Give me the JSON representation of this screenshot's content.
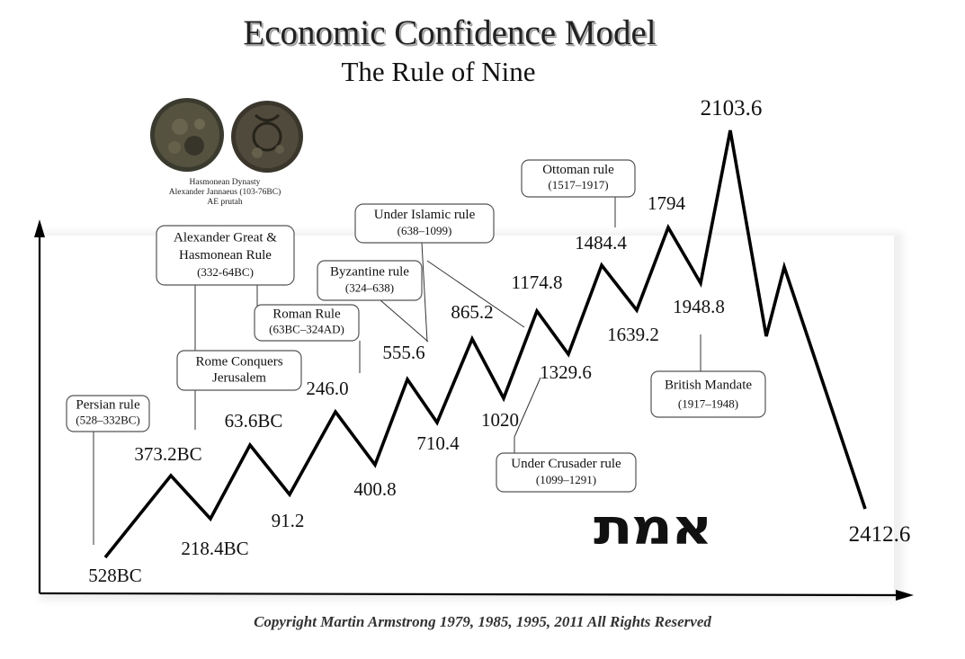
{
  "header": {
    "title": "Economic Confidence Model",
    "subtitle": "The Rule of Nine"
  },
  "coin": {
    "caption_lines": [
      "Hasmonean Dynasty",
      "Alexander Jannaeus (103-76BC)",
      "AE prutah"
    ]
  },
  "hebrew_text": "אמת",
  "copyright": "Copyright Martin Armstrong 1979, 1985, 1995, 2011 All Rights Reserved",
  "colors": {
    "line": "#000000",
    "box_border": "#555555",
    "background": "#ffffff"
  },
  "chart_data": {
    "type": "line",
    "title": "Economic Confidence Model",
    "subtitle": "The Rule of Nine",
    "xlabel": "",
    "ylabel": "",
    "grid": false,
    "points": [
      {
        "x": "528BC",
        "label": "528BC",
        "kind": "trough"
      },
      {
        "x": "373.2BC",
        "label": "373.2BC",
        "kind": "peak"
      },
      {
        "x": "218.4BC",
        "label": "218.4BC",
        "kind": "trough"
      },
      {
        "x": "63.6BC",
        "label": "63.6BC",
        "kind": "peak"
      },
      {
        "x": "91.2",
        "label": "91.2",
        "kind": "trough"
      },
      {
        "x": "246.0",
        "label": "246.0",
        "kind": "peak"
      },
      {
        "x": "400.8",
        "label": "400.8",
        "kind": "trough"
      },
      {
        "x": "555.6",
        "label": "555.6",
        "kind": "peak"
      },
      {
        "x": "710.4",
        "label": "710.4",
        "kind": "trough"
      },
      {
        "x": "865.2",
        "label": "865.2",
        "kind": "peak"
      },
      {
        "x": "1020",
        "label": "1020",
        "kind": "trough"
      },
      {
        "x": "1174.8",
        "label": "1174.8",
        "kind": "peak"
      },
      {
        "x": "1329.6",
        "label": "1329.6",
        "kind": "trough"
      },
      {
        "x": "1484.4",
        "label": "1484.4",
        "kind": "peak"
      },
      {
        "x": "1639.2",
        "label": "1639.2",
        "kind": "trough"
      },
      {
        "x": "1794",
        "label": "1794",
        "kind": "peak"
      },
      {
        "x": "1948.8",
        "label": "1948.8",
        "kind": "trough"
      },
      {
        "x": "2103.6",
        "label": "2103.6",
        "kind": "peak"
      },
      {
        "x": "",
        "label": "",
        "kind": "trough"
      },
      {
        "x": "",
        "label": "",
        "kind": "peak"
      },
      {
        "x": "2412.6",
        "label": "2412.6",
        "kind": "trough"
      }
    ],
    "annotations": [
      {
        "lines": [
          "Persian rule",
          "(528–332BC)"
        ]
      },
      {
        "lines": [
          "Alexander Great &",
          "Hasmonean Rule",
          "(332-64BC)"
        ]
      },
      {
        "lines": [
          "Rome Conquers",
          "Jerusalem"
        ]
      },
      {
        "lines": [
          "Roman Rule",
          "(63BC–324AD)"
        ]
      },
      {
        "lines": [
          "Byzantine rule",
          "(324–638)"
        ]
      },
      {
        "lines": [
          "Under Islamic rule",
          "(638–1099)"
        ]
      },
      {
        "lines": [
          "Ottoman rule",
          "(1517–1917)"
        ]
      },
      {
        "lines": [
          "British Mandate",
          "(1917–1948)"
        ]
      },
      {
        "lines": [
          "Under Crusader rule",
          "(1099–1291)"
        ]
      }
    ]
  }
}
